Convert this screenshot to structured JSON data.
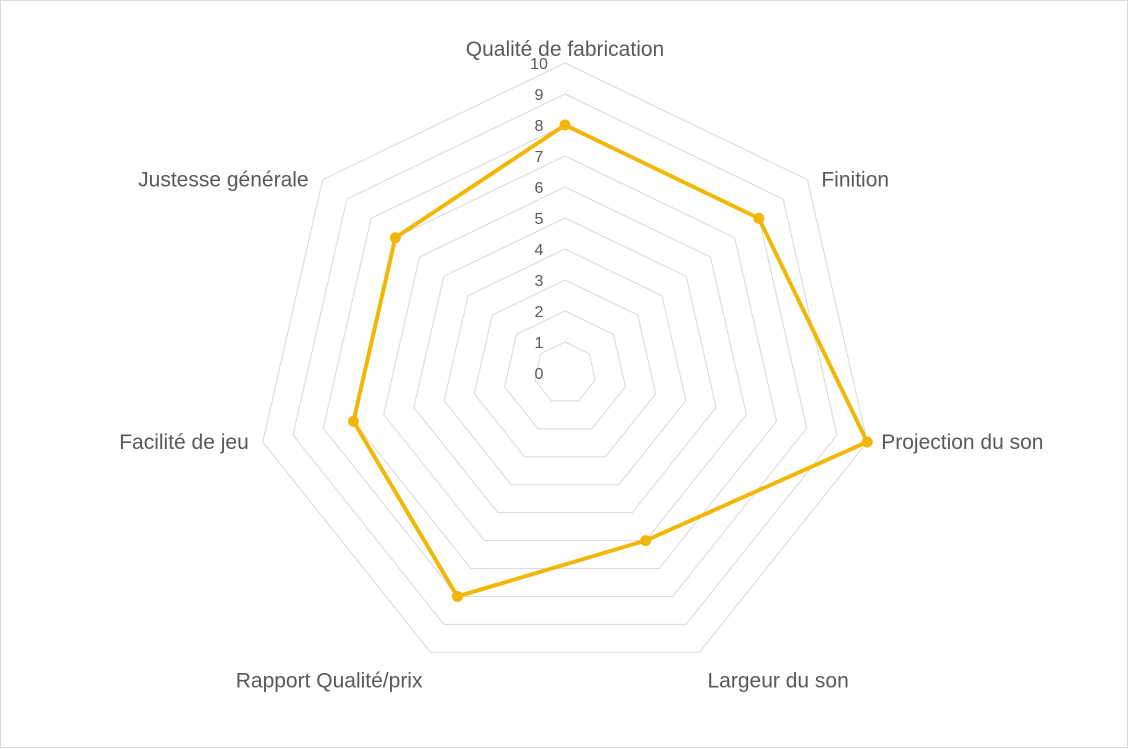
{
  "chart_data": {
    "type": "radar",
    "categories": [
      "Qualité de fabrication",
      "Finition",
      "Projection du son",
      "Largeur du son",
      "Rapport Qualité/prix",
      "Facilité de jeu",
      "Justesse générale"
    ],
    "series": [
      {
        "values": [
          8,
          8,
          10,
          6,
          8,
          7,
          7
        ],
        "color": "#F2B705"
      }
    ],
    "rlim": [
      0,
      10
    ],
    "ticks": [
      "0",
      "1",
      "2",
      "3",
      "4",
      "5",
      "6",
      "7",
      "8",
      "9",
      "10"
    ],
    "grid": true,
    "gridColor": "#d9d9d9",
    "textColor": "#595959",
    "title": "",
    "legend": "none"
  }
}
